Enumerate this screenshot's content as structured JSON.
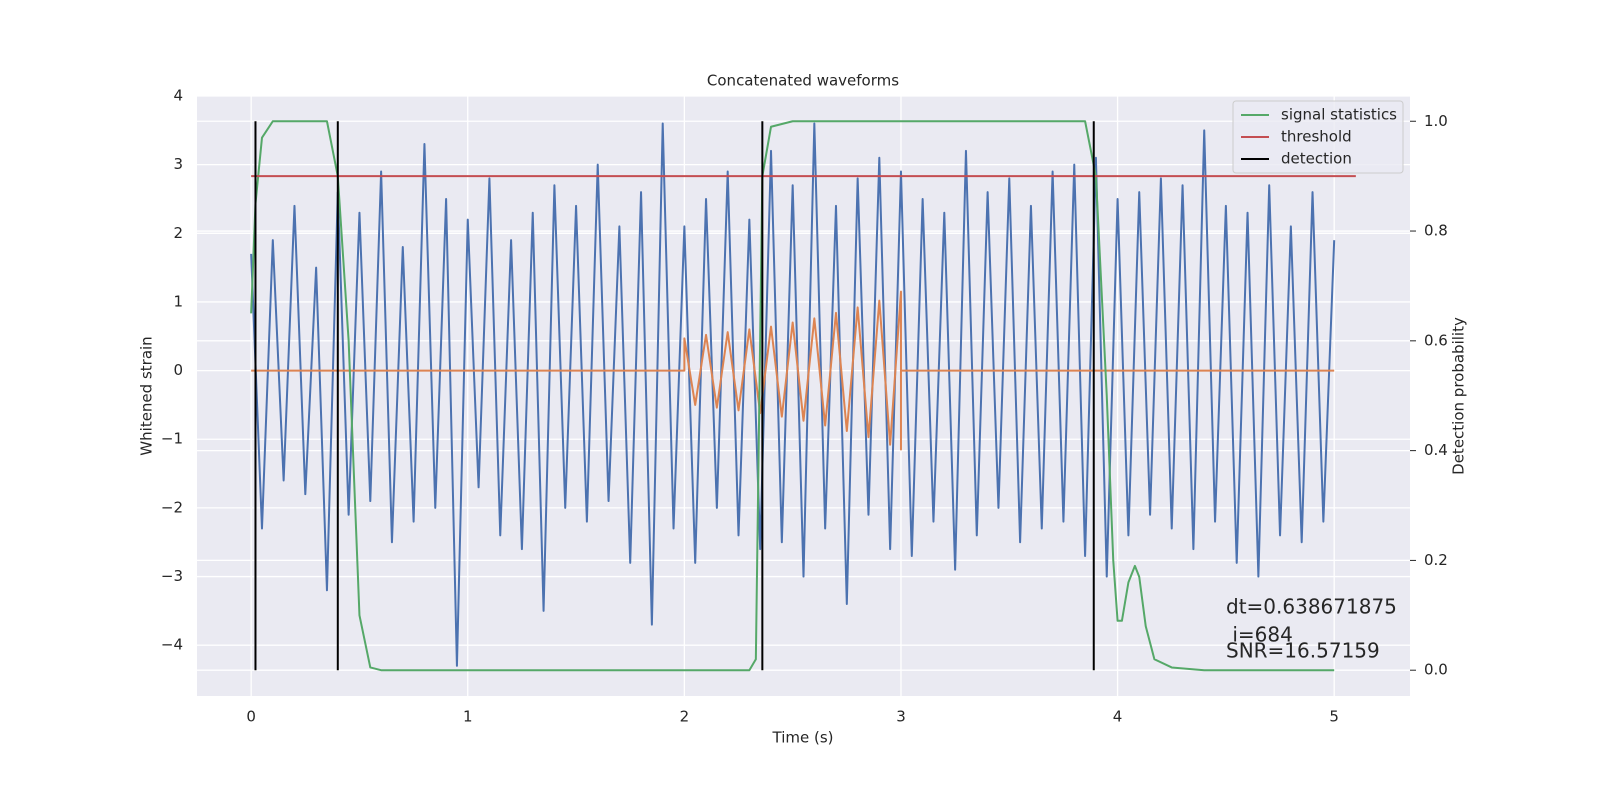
{
  "chart_data": {
    "type": "line",
    "title": "Concatenated waveforms",
    "xlabel": "Time (s)",
    "ylabel": "Whitened strain",
    "y2label": "Detection probability",
    "xlim": [
      -0.25,
      5.35
    ],
    "ylim": [
      -4.74,
      4.0
    ],
    "y2lim": [
      -0.047,
      1.046
    ],
    "xticks": [
      0,
      1,
      2,
      3,
      4,
      5
    ],
    "yticks": [
      {
        "value": -4,
        "label": "−4"
      },
      {
        "value": -3,
        "label": "−3"
      },
      {
        "value": -2,
        "label": "−2"
      },
      {
        "value": -1,
        "label": "−1"
      },
      0,
      1,
      2,
      3,
      4
    ],
    "y2ticks": [
      {
        "value": 0,
        "label": "0.0"
      },
      {
        "value": 0.2,
        "label": "0.2"
      },
      {
        "value": 0.4,
        "label": "0.4"
      },
      {
        "value": 0.6,
        "label": "0.6"
      },
      {
        "value": 0.8,
        "label": "0.8"
      },
      {
        "value": 1,
        "label": "1.0"
      }
    ],
    "grid": true,
    "legend": "upper right",
    "series": [
      {
        "color": "#4c72b0",
        "x": [
          0,
          0.05,
          0.1,
          0.15,
          0.2,
          0.25,
          0.3,
          0.35,
          0.4,
          0.45,
          0.5,
          0.55,
          0.6,
          0.65,
          0.7,
          0.75,
          0.8,
          0.85,
          0.9,
          0.95,
          1,
          1.05,
          1.1,
          1.15,
          1.2,
          1.25,
          1.3,
          1.35,
          1.4,
          1.45,
          1.5,
          1.55,
          1.6,
          1.65,
          1.7,
          1.75,
          1.8,
          1.85,
          1.9,
          1.95,
          2,
          2.05,
          2.1,
          2.15,
          2.2,
          2.25,
          2.3,
          2.35,
          2.4,
          2.45,
          2.5,
          2.55,
          2.6,
          2.65,
          2.7,
          2.75,
          2.8,
          2.85,
          2.9,
          2.95,
          3,
          3.05,
          3.1,
          3.15,
          3.2,
          3.25,
          3.3,
          3.35,
          3.4,
          3.45,
          3.5,
          3.55,
          3.6,
          3.65,
          3.7,
          3.75,
          3.8,
          3.85,
          3.9,
          3.95,
          4,
          4.05,
          4.1,
          4.15,
          4.2,
          4.25,
          4.3,
          4.35,
          4.4,
          4.45,
          4.5,
          4.55,
          4.6,
          4.65,
          4.7,
          4.75,
          4.8,
          4.85,
          4.9,
          4.95,
          5
        ],
        "values": [
          1.7,
          -2.3,
          1.9,
          -1.6,
          2.4,
          -1.8,
          1.5,
          -3.2,
          2.6,
          -2.1,
          2.3,
          -1.9,
          2.9,
          -2.5,
          1.8,
          -2.2,
          3.3,
          -2.0,
          2.5,
          -4.3,
          2.2,
          -1.7,
          2.8,
          -2.4,
          1.9,
          -2.6,
          2.3,
          -3.5,
          2.7,
          -2.0,
          2.4,
          -2.2,
          3.0,
          -1.9,
          2.1,
          -2.8,
          2.6,
          -3.7,
          3.6,
          -2.3,
          2.1,
          -2.8,
          2.5,
          -2.0,
          2.9,
          -2.4,
          2.2,
          -2.6,
          3.2,
          -2.5,
          2.7,
          -3.0,
          3.6,
          -2.3,
          2.4,
          -3.4,
          2.8,
          -2.1,
          3.1,
          -2.6,
          2.9,
          -2.7,
          2.5,
          -2.2,
          2.3,
          -2.9,
          3.2,
          -2.4,
          2.6,
          -2.0,
          2.8,
          -2.5,
          2.4,
          -2.3,
          2.9,
          -2.2,
          3.0,
          -2.7,
          3.1,
          -3.0,
          2.5,
          -2.4,
          2.6,
          -2.1,
          2.8,
          -2.3,
          2.7,
          -2.6,
          3.5,
          -2.2,
          2.4,
          -2.8,
          2.3,
          -3.0,
          2.7,
          -2.4,
          2.1,
          -2.5,
          2.6,
          -2.2,
          1.9
        ]
      },
      {
        "color": "#dd8452",
        "x": [
          0,
          2.0,
          2.0,
          2.05,
          2.1,
          2.15,
          2.2,
          2.25,
          2.3,
          2.35,
          2.4,
          2.45,
          2.5,
          2.55,
          2.6,
          2.65,
          2.7,
          2.75,
          2.8,
          2.85,
          2.9,
          2.95,
          3.0,
          3.0,
          3.0,
          5.0
        ],
        "values": [
          0,
          0,
          0.47,
          -0.5,
          0.52,
          -0.54,
          0.56,
          -0.58,
          0.6,
          -0.62,
          0.64,
          -0.67,
          0.7,
          -0.73,
          0.76,
          -0.8,
          0.84,
          -0.88,
          0.92,
          -0.97,
          1.02,
          -1.08,
          1.15,
          -1.15,
          0,
          0
        ]
      },
      {
        "name": "signal statistics",
        "color": "#55a868",
        "axis": "y2",
        "x": [
          0,
          0.02,
          0.05,
          0.1,
          0.35,
          0.4,
          0.45,
          0.5,
          0.55,
          0.6,
          2.3,
          2.33,
          2.36,
          2.4,
          2.5,
          3.85,
          3.9,
          3.95,
          3.98,
          4.0,
          4.02,
          4.05,
          4.08,
          4.1,
          4.13,
          4.17,
          4.25,
          4.4,
          5.0
        ],
        "values": [
          0.65,
          0.85,
          0.97,
          1.0,
          1.0,
          0.9,
          0.6,
          0.1,
          0.005,
          0.0,
          0.0,
          0.02,
          0.9,
          0.99,
          1.0,
          1.0,
          0.9,
          0.5,
          0.2,
          0.09,
          0.09,
          0.16,
          0.19,
          0.17,
          0.08,
          0.02,
          0.005,
          0.0,
          0.0
        ]
      },
      {
        "name": "threshold",
        "color": "#c44e52",
        "axis": "y2",
        "x": [
          0,
          5.1
        ],
        "values": [
          0.9,
          0.9
        ]
      },
      {
        "name": "detection",
        "color": "#000000",
        "axis": "y2",
        "style": "vlines",
        "x": [
          0.02,
          0.4,
          2.36,
          3.89
        ],
        "values": [
          1,
          1,
          1,
          1
        ]
      }
    ],
    "annotations": [
      "dt=0.638671875",
      " i=684",
      "SNR=16.57159"
    ]
  }
}
